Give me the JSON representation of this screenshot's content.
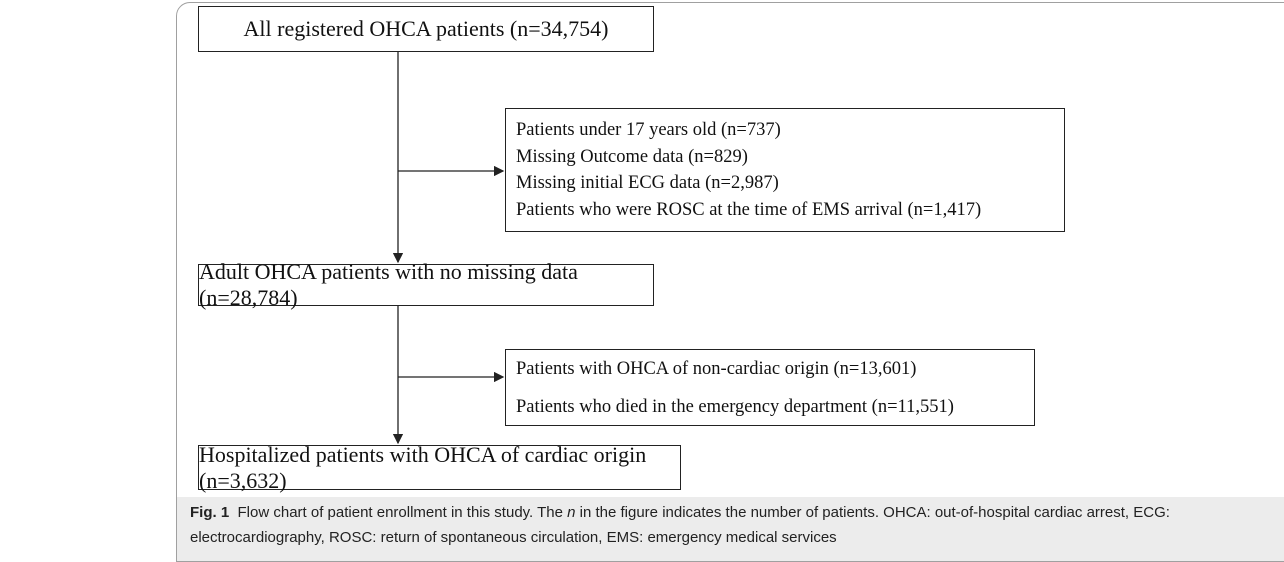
{
  "nodes": [
    {
      "label": "All registered OHCA patients (n=34,754)"
    },
    {
      "lines": [
        "Patients under 17 years old (n=737)",
        "Missing Outcome data (n=829)",
        "Missing initial ECG data (n=2,987)",
        "Patients who were ROSC at the time of EMS arrival (n=1,417)"
      ]
    },
    {
      "label": "Adult OHCA patients with no missing data (n=28,784)"
    },
    {
      "lines": [
        "Patients with OHCA of non-cardiac origin (n=13,601)",
        "Patients who died in the emergency department (n=11,551)"
      ]
    },
    {
      "label": "Hospitalized patients with OHCA of cardiac origin (n=3,632)"
    }
  ],
  "caption": {
    "label": "Fig. 1",
    "text_before": "Flow chart of patient enrollment in this study. The",
    "italic": "n",
    "text_after": "in the figure indicates the number of patients. OHCA: out-of-hospital cardiac arrest, ECG: electrocardiography, ROSC: return of spontaneous circulation, EMS: emergency medical services"
  }
}
